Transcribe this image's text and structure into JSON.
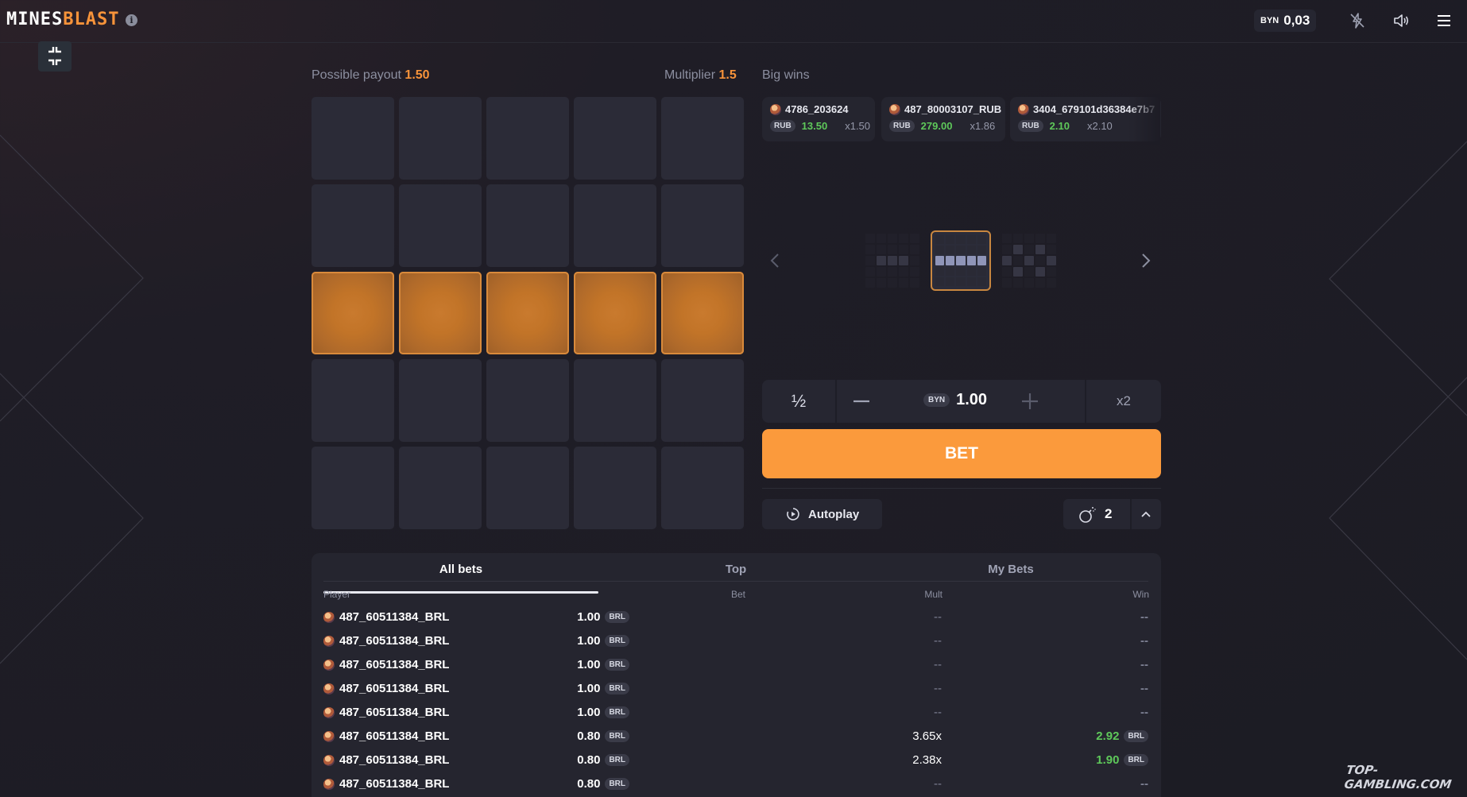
{
  "header": {
    "logo_part1": "MINES",
    "logo_part2": "BLAST",
    "info_glyph": "i",
    "balance_currency": "BYN",
    "balance_amount": "0,03",
    "icons": [
      "info-icon",
      "turbo-off-icon",
      "sound-icon",
      "menu-icon",
      "collapse-icon"
    ]
  },
  "game": {
    "payout_label": "Possible payout",
    "payout_value": "1.50",
    "multiplier_label": "Multiplier",
    "multiplier_value": "1.5",
    "grid_rows": 5,
    "grid_cols": 5,
    "highlighted_row": 3
  },
  "big_wins": {
    "title": "Big wins",
    "items": [
      {
        "player": "4786_203624",
        "currency": "RUB",
        "amount": "13.50",
        "mult": "x1.50"
      },
      {
        "player": "487_80003107_RUB",
        "currency": "RUB",
        "amount": "279.00",
        "mult": "x1.86"
      },
      {
        "player": "3404_679101d36384e7b7",
        "currency": "RUB",
        "amount": "2.10",
        "mult": "x2.10"
      }
    ]
  },
  "controls": {
    "half_label": "½",
    "bet_currency": "BYN",
    "bet_amount": "1.00",
    "double_label": "x2",
    "bet_button": "BET",
    "autoplay_label": "Autoplay",
    "mines_count": "2"
  },
  "bets_table": {
    "tabs": [
      "All bets",
      "Top",
      "My Bets"
    ],
    "active_tab": 0,
    "columns": [
      "Player",
      "Bet",
      "Mult",
      "Win"
    ],
    "rows": [
      {
        "player": "487_60511384_BRL",
        "bet": "1.00",
        "currency": "BRL",
        "mult": "--",
        "win": "--",
        "win_currency": ""
      },
      {
        "player": "487_60511384_BRL",
        "bet": "1.00",
        "currency": "BRL",
        "mult": "--",
        "win": "--",
        "win_currency": ""
      },
      {
        "player": "487_60511384_BRL",
        "bet": "1.00",
        "currency": "BRL",
        "mult": "--",
        "win": "--",
        "win_currency": ""
      },
      {
        "player": "487_60511384_BRL",
        "bet": "1.00",
        "currency": "BRL",
        "mult": "--",
        "win": "--",
        "win_currency": ""
      },
      {
        "player": "487_60511384_BRL",
        "bet": "1.00",
        "currency": "BRL",
        "mult": "--",
        "win": "--",
        "win_currency": ""
      },
      {
        "player": "487_60511384_BRL",
        "bet": "0.80",
        "currency": "BRL",
        "mult": "3.65x",
        "win": "2.92",
        "win_currency": "BRL"
      },
      {
        "player": "487_60511384_BRL",
        "bet": "0.80",
        "currency": "BRL",
        "mult": "2.38x",
        "win": "1.90",
        "win_currency": "BRL"
      },
      {
        "player": "487_60511384_BRL",
        "bet": "0.80",
        "currency": "BRL",
        "mult": "--",
        "win": "--",
        "win_currency": ""
      }
    ]
  },
  "watermark": "TOP-GAMBLING.COM",
  "colors": {
    "accent": "#f7933a",
    "bet_button": "#fb9a3c",
    "win_green": "#5ec85a",
    "tile": "#2b2b37",
    "tile_lit": "#c27428"
  }
}
